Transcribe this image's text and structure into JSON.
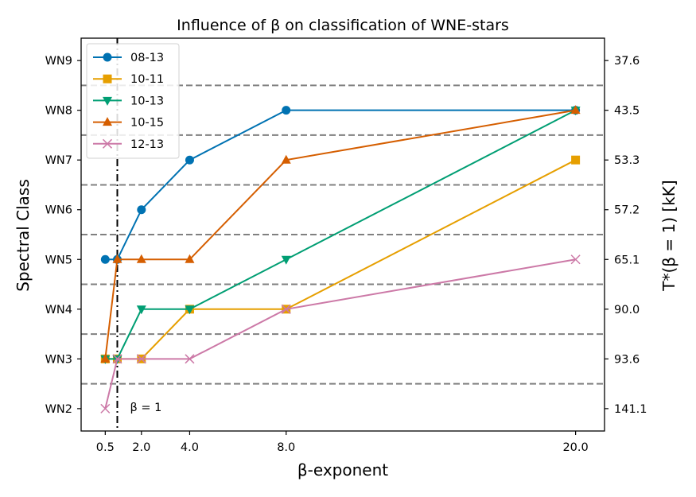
{
  "chart_data": {
    "type": "line",
    "title": "Influence of β on classification of WNE-stars",
    "xlabel": "β-exponent",
    "ylabel": "Spectral Class",
    "y2label": "T*(β = 1) [kK]",
    "xlim": [
      -0.5,
      21.2
    ],
    "ylim": [
      1.55,
      9.45
    ],
    "x_ticks": [
      0.5,
      2.0,
      4.0,
      8.0,
      20.0
    ],
    "x_tick_labels": [
      "0.5",
      "2.0",
      "4.0",
      "8.0",
      "20.0"
    ],
    "y_ticks": [
      2,
      3,
      4,
      5,
      6,
      7,
      8,
      9
    ],
    "y_tick_labels": [
      "WN2",
      "WN3",
      "WN4",
      "WN5",
      "WN6",
      "WN7",
      "WN8",
      "WN9"
    ],
    "y2_tick_labels": [
      "141.1",
      "93.6",
      "90.0",
      "65.1",
      "57.2",
      "53.3",
      "43.5",
      "37.6"
    ],
    "hlines": [
      2.5,
      3.5,
      4.5,
      5.5,
      6.5,
      7.5,
      8.5
    ],
    "vline": {
      "x": 1.0,
      "label": "β = 1"
    },
    "legend_position": "top-left",
    "series": [
      {
        "name": "08-13",
        "color": "#0072b2",
        "marker": "circle",
        "x": [
          0.5,
          1.0,
          2.0,
          4.0,
          8.0,
          20.0
        ],
        "y": [
          5,
          5,
          6,
          7,
          8,
          8
        ]
      },
      {
        "name": "10-11",
        "color": "#e69f00",
        "marker": "square",
        "x": [
          0.5,
          1.0,
          2.0,
          4.0,
          8.0,
          20.0
        ],
        "y": [
          3,
          3,
          3,
          4,
          4,
          7
        ]
      },
      {
        "name": "10-13",
        "color": "#009e73",
        "marker": "triangle-down",
        "x": [
          0.5,
          1.0,
          2.0,
          4.0,
          8.0,
          20.0
        ],
        "y": [
          3,
          3,
          4,
          4,
          5,
          8
        ]
      },
      {
        "name": "10-15",
        "color": "#d55e00",
        "marker": "triangle-up",
        "x": [
          0.5,
          1.0,
          2.0,
          4.0,
          8.0,
          20.0
        ],
        "y": [
          3,
          5,
          5,
          5,
          7,
          8
        ]
      },
      {
        "name": "12-13",
        "color": "#cc79a7",
        "marker": "x",
        "x": [
          0.5,
          1.0,
          2.0,
          4.0,
          8.0,
          20.0
        ],
        "y": [
          2,
          3,
          3,
          3,
          4,
          5
        ]
      }
    ]
  }
}
